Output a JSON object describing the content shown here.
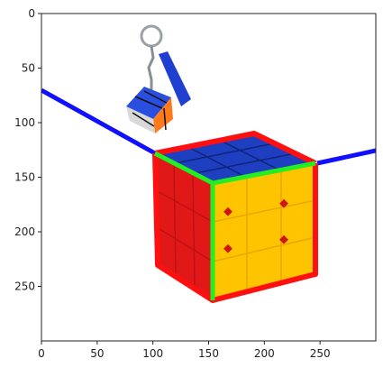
{
  "figure": {
    "x_ticks": [
      "0",
      "50",
      "100",
      "150",
      "200",
      "250"
    ],
    "y_ticks": [
      "0",
      "50",
      "100",
      "150",
      "200",
      "250"
    ],
    "x_range": [
      0,
      300
    ],
    "y_range": [
      300,
      0
    ]
  },
  "image": {
    "subject": "rubiks-cube-with-keychain-cube",
    "overlay_colors": {
      "horizon_line": "#1010ff",
      "top_face_outline": "#ff1010",
      "vertical_edge": "#22ee22",
      "front_edge": "#22ee22"
    },
    "face_colors": {
      "top": "#1e3fbf",
      "right": "#ffc400",
      "left": "#e01818",
      "keychain_strap": "#1f3fd0"
    }
  }
}
